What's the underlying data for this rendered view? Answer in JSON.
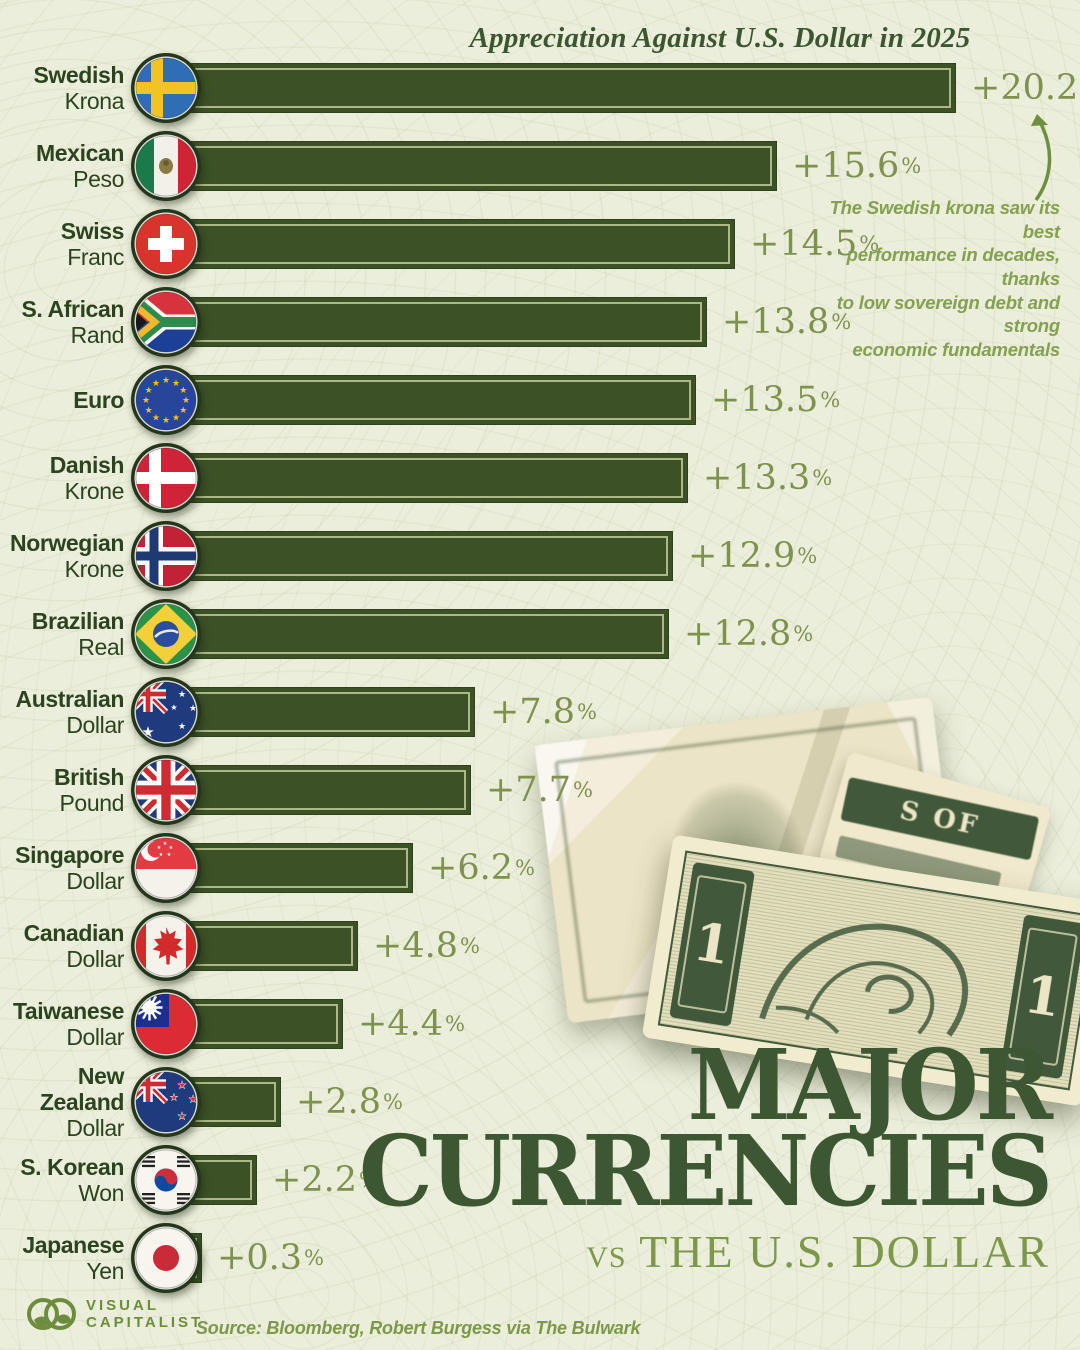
{
  "header": {
    "title": "Appreciation Against U.S. Dollar in 2025"
  },
  "chart_data": {
    "type": "bar",
    "orientation": "horizontal",
    "title": "Appreciation Against U.S. Dollar in 2025",
    "unit": "%",
    "xlim": [
      0,
      20.2
    ],
    "grid": false,
    "legend": "none",
    "categories": [
      "Swedish Krona",
      "Mexican Peso",
      "Swiss Franc",
      "S. African Rand",
      "Euro",
      "Danish Krone",
      "Norwegian Krone",
      "Brazilian Real",
      "Australian Dollar",
      "British Pound",
      "Singapore Dollar",
      "Canadian Dollar",
      "Taiwanese Dollar",
      "New Zealand Dollar",
      "S. Korean Won",
      "Japanese Yen"
    ],
    "values": [
      20.2,
      15.6,
      14.5,
      13.8,
      13.5,
      13.3,
      12.9,
      12.8,
      7.8,
      7.7,
      6.2,
      4.8,
      4.4,
      2.8,
      2.2,
      0.3
    ],
    "items": [
      {
        "category": "Swedish Krona",
        "label": [
          "Swedish",
          "Krona"
        ],
        "flag": "sweden",
        "value": 20.2,
        "display": "+20.2"
      },
      {
        "category": "Mexican Peso",
        "label": [
          "Mexican",
          "Peso"
        ],
        "flag": "mexico",
        "value": 15.6,
        "display": "+15.6"
      },
      {
        "category": "Swiss Franc",
        "label": [
          "Swiss",
          "Franc"
        ],
        "flag": "switzerland",
        "value": 14.5,
        "display": "+14.5"
      },
      {
        "category": "S. African Rand",
        "label": [
          "S. African",
          "Rand"
        ],
        "flag": "south-africa",
        "value": 13.8,
        "display": "+13.8"
      },
      {
        "category": "Euro",
        "label": [
          "Euro",
          ""
        ],
        "flag": "eu",
        "value": 13.5,
        "display": "+13.5"
      },
      {
        "category": "Danish Krone",
        "label": [
          "Danish",
          "Krone"
        ],
        "flag": "denmark",
        "value": 13.3,
        "display": "+13.3"
      },
      {
        "category": "Norwegian Krone",
        "label": [
          "Norwegian",
          "Krone"
        ],
        "flag": "norway",
        "value": 12.9,
        "display": "+12.9"
      },
      {
        "category": "Brazilian Real",
        "label": [
          "Brazilian",
          "Real"
        ],
        "flag": "brazil",
        "value": 12.8,
        "display": "+12.8"
      },
      {
        "category": "Australian Dollar",
        "label": [
          "Australian",
          "Dollar"
        ],
        "flag": "australia",
        "value": 7.8,
        "display": "+7.8"
      },
      {
        "category": "British Pound",
        "label": [
          "British",
          "Pound"
        ],
        "flag": "uk",
        "value": 7.7,
        "display": "+7.7"
      },
      {
        "category": "Singapore Dollar",
        "label": [
          "Singapore",
          "Dollar"
        ],
        "flag": "singapore",
        "value": 6.2,
        "display": "+6.2"
      },
      {
        "category": "Canadian Dollar",
        "label": [
          "Canadian",
          "Dollar"
        ],
        "flag": "canada",
        "value": 4.8,
        "display": "+4.8"
      },
      {
        "category": "Taiwanese Dollar",
        "label": [
          "Taiwanese",
          "Dollar"
        ],
        "flag": "taiwan",
        "value": 4.4,
        "display": "+4.4"
      },
      {
        "category": "New Zealand Dollar",
        "label": [
          "New Zealand",
          "Dollar"
        ],
        "flag": "new-zealand",
        "value": 2.8,
        "display": "+2.8"
      },
      {
        "category": "S. Korean Won",
        "label": [
          "S. Korean",
          "Won"
        ],
        "flag": "south-korea",
        "value": 2.2,
        "display": "+2.2"
      },
      {
        "category": "Japanese Yen",
        "label": [
          "Japanese",
          "Yen"
        ],
        "flag": "japan",
        "value": 0.3,
        "display": "+0.3"
      }
    ],
    "annotation": "The Swedish krona saw its best performance in decades, thanks to low sovereign debt and strong economic fundamentals"
  },
  "annotation": {
    "lines": [
      "The Swedish krona saw its best",
      "performance in decades, thanks",
      "to low sovereign debt and strong",
      "economic fundamentals"
    ]
  },
  "title_block": {
    "line1": "MAJOR",
    "line2": "CURRENCIES",
    "vs": "VS",
    "line3": "THE U.S. DOLLAR"
  },
  "footer": {
    "brand_line1": "VISUAL",
    "brand_line2": "CAPITALIST",
    "source": "Source: Bloomberg, Robert Burgess via The Bulwark"
  },
  "decor": {
    "bill_numeral": "1",
    "bill_band_text": "S OF"
  },
  "colors": {
    "background": "#ebeeda",
    "bar_fill": "#3c5126",
    "bar_keyline": "#d1dbaa",
    "label_text": "#2c431f",
    "value_text": "#7e914e",
    "title_text": "#3c5631",
    "annotation_text": "#84a050",
    "big_title_text": "#3e5733",
    "subtitle_olive": "#7d984b",
    "logo_olive": "#6d8c3e"
  }
}
